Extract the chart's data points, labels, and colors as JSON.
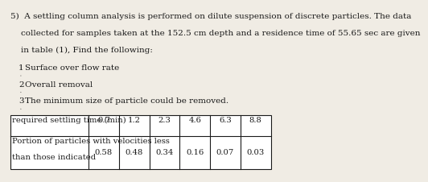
{
  "para_lines": [
    "5)  A settling column analysis is performed on dilute suspension of discrete particles. The data",
    "    collected for samples taken at the 152.5 cm depth and a residence time of 55.65 sec are given",
    "    in table (1), Find the following:"
  ],
  "item_nums": [
    "1",
    "2",
    "3"
  ],
  "item_texts": [
    "Surface over flow rate",
    "Overall removal",
    "The minimum size of particle could be removed."
  ],
  "table_header_label": "required settling time (min)",
  "table_header_values": [
    "0.7",
    "1.2",
    "2.3",
    "4.6",
    "6.3",
    "8.8"
  ],
  "table_row2_lines": [
    "Portion of particles with velocities less",
    "than those indicated"
  ],
  "table_row2_values": [
    "0.58",
    "0.48",
    "0.34",
    "0.16",
    "0.07",
    "0.03"
  ],
  "bg_color": "#f0ece4",
  "text_color": "#1a1a1a",
  "font_size": 7.5,
  "table_font_size": 7.2
}
